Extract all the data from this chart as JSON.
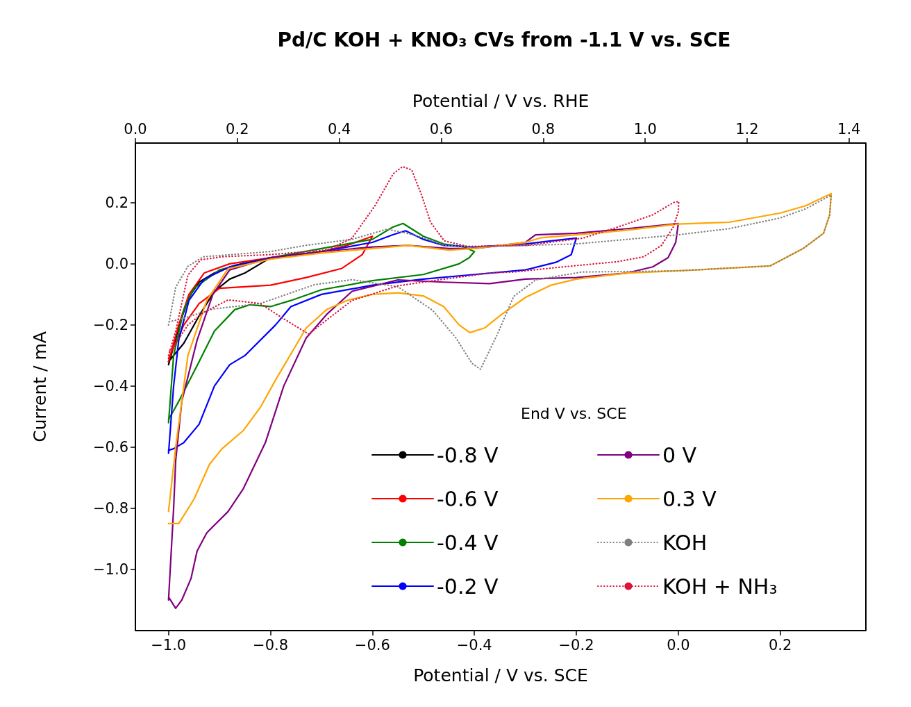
{
  "chart_data": {
    "type": "line",
    "title": "Pd/C KOH + KNO₃ CVs from -1.1 V vs. SCE",
    "xlabel": "Potential / V vs. SCE",
    "x2label": "Potential / V vs. RHE",
    "ylabel": "Current / mA",
    "legend_title": "End V vs. SCE",
    "legend": "bottom right",
    "marker": "none",
    "xlim": [
      -1.065,
      0.368
    ],
    "xticks": [
      {
        "value": -1.0,
        "label": "−1.0"
      },
      {
        "value": -0.8,
        "label": "−0.8"
      },
      {
        "value": -0.6,
        "label": "−0.6"
      },
      {
        "value": -0.4,
        "label": "−0.4"
      },
      {
        "value": -0.2,
        "label": "−0.2"
      },
      {
        "value": 0.0,
        "label": "0.0"
      },
      {
        "value": 0.2,
        "label": "0.2"
      }
    ],
    "x2lim": [
      0.0,
      1.433
    ],
    "x2ticks": [
      {
        "value": 0.0,
        "label": "0.0"
      },
      {
        "value": 0.2,
        "label": "0.2"
      },
      {
        "value": 0.4,
        "label": "0.4"
      },
      {
        "value": 0.6,
        "label": "0.6"
      },
      {
        "value": 0.8,
        "label": "0.8"
      },
      {
        "value": 1.0,
        "label": "1.0"
      },
      {
        "value": 1.2,
        "label": "1.2"
      },
      {
        "value": 1.4,
        "label": "1.4"
      }
    ],
    "ylim": [
      -1.2,
      0.395
    ],
    "yticks": [
      {
        "value": -1.0,
        "label": "−1.0"
      },
      {
        "value": -0.8,
        "label": "−0.8"
      },
      {
        "value": -0.6,
        "label": "−0.6"
      },
      {
        "value": -0.4,
        "label": "−0.4"
      },
      {
        "value": -0.2,
        "label": "−0.2"
      },
      {
        "value": 0.0,
        "label": "0.0"
      },
      {
        "value": 0.2,
        "label": "0.2"
      }
    ],
    "series": [
      {
        "name": "-0.8 V",
        "color": "#000000",
        "line_style": "solid",
        "x": [
          -1.0,
          -0.99,
          -0.975,
          -0.96,
          -0.94,
          -0.91,
          -0.87,
          -0.83,
          -0.8,
          -0.82,
          -0.85,
          -0.88,
          -0.91,
          -0.94,
          -0.97,
          -1.0
        ],
        "values": [
          -0.33,
          -0.27,
          -0.18,
          -0.11,
          -0.06,
          -0.03,
          -0.005,
          0.01,
          0.02,
          0.0,
          -0.03,
          -0.05,
          -0.09,
          -0.17,
          -0.26,
          -0.32
        ]
      },
      {
        "name": "-0.6 V",
        "color": "#ff0000",
        "line_style": "solid",
        "x": [
          -1.0,
          -0.98,
          -0.96,
          -0.93,
          -0.88,
          -0.8,
          -0.7,
          -0.65,
          -0.6,
          -0.62,
          -0.66,
          -0.73,
          -0.8,
          -0.85,
          -0.9,
          -0.94,
          -0.97,
          -1.0
        ],
        "values": [
          -0.32,
          -0.2,
          -0.1,
          -0.03,
          0.0,
          0.02,
          0.04,
          0.06,
          0.09,
          0.03,
          -0.015,
          -0.045,
          -0.07,
          -0.075,
          -0.08,
          -0.13,
          -0.2,
          -0.31
        ]
      },
      {
        "name": "-0.4 V",
        "color": "#008000",
        "line_style": "solid",
        "x": [
          -1.0,
          -0.99,
          -0.97,
          -0.95,
          -0.9,
          -0.8,
          -0.7,
          -0.6,
          -0.56,
          -0.54,
          -0.5,
          -0.46,
          -0.42,
          -0.4,
          -0.41,
          -0.43,
          -0.5,
          -0.6,
          -0.7,
          -0.76,
          -0.8,
          -0.84,
          -0.87,
          -0.91,
          -0.94,
          -0.98,
          -1.0
        ],
        "values": [
          -0.52,
          -0.3,
          -0.15,
          -0.08,
          -0.02,
          0.02,
          0.05,
          0.08,
          0.12,
          0.132,
          0.09,
          0.065,
          0.055,
          0.04,
          0.02,
          0.0,
          -0.035,
          -0.055,
          -0.085,
          -0.12,
          -0.14,
          -0.134,
          -0.15,
          -0.22,
          -0.32,
          -0.45,
          -0.51
        ]
      },
      {
        "name": "-0.2 V",
        "color": "#0000ff",
        "line_style": "solid",
        "x": [
          -1.0,
          -0.99,
          -0.98,
          -0.96,
          -0.93,
          -0.88,
          -0.8,
          -0.7,
          -0.6,
          -0.56,
          -0.535,
          -0.5,
          -0.46,
          -0.4,
          -0.3,
          -0.25,
          -0.2,
          -0.21,
          -0.24,
          -0.3,
          -0.4,
          -0.5,
          -0.6,
          -0.7,
          -0.76,
          -0.79,
          -0.85,
          -0.88,
          -0.91,
          -0.94,
          -0.97,
          -0.99,
          -1.0
        ],
        "values": [
          -0.62,
          -0.4,
          -0.25,
          -0.12,
          -0.05,
          -0.01,
          0.02,
          0.04,
          0.07,
          0.095,
          0.108,
          0.08,
          0.06,
          0.055,
          0.065,
          0.075,
          0.084,
          0.03,
          0.005,
          -0.02,
          -0.035,
          -0.05,
          -0.07,
          -0.1,
          -0.14,
          -0.2,
          -0.3,
          -0.33,
          -0.4,
          -0.525,
          -0.585,
          -0.605,
          -0.61
        ]
      },
      {
        "name": "0 V",
        "color": "#800080",
        "line_style": "solid",
        "x": [
          -1.0,
          -0.99,
          -0.986,
          -0.974,
          -0.944,
          -0.913,
          -0.88,
          -0.8,
          -0.7,
          -0.6,
          -0.53,
          -0.45,
          -0.4,
          -0.3,
          -0.28,
          -0.2,
          -0.1,
          0.0,
          -0.005,
          -0.02,
          -0.05,
          -0.1,
          -0.2,
          -0.3,
          -0.37,
          -0.46,
          -0.55,
          -0.64,
          -0.69,
          -0.73,
          -0.774,
          -0.81,
          -0.853,
          -0.883,
          -0.925,
          -0.944,
          -0.956,
          -0.974,
          -0.986,
          -1.0
        ],
        "values": [
          -1.1,
          -0.8,
          -0.645,
          -0.45,
          -0.25,
          -0.1,
          -0.02,
          0.02,
          0.04,
          0.055,
          0.06,
          0.05,
          0.05,
          0.07,
          0.095,
          0.1,
          0.115,
          0.132,
          0.07,
          0.02,
          -0.01,
          -0.03,
          -0.045,
          -0.05,
          -0.065,
          -0.06,
          -0.053,
          -0.09,
          -0.166,
          -0.243,
          -0.4,
          -0.585,
          -0.735,
          -0.81,
          -0.88,
          -0.94,
          -1.03,
          -1.1,
          -1.127,
          -1.09
        ]
      },
      {
        "name": "0.3 V",
        "color": "#ffa500",
        "line_style": "solid",
        "x": [
          -1.0,
          -0.986,
          -0.962,
          -0.925,
          -0.883,
          -0.8,
          -0.7,
          -0.6,
          -0.53,
          -0.45,
          -0.4,
          -0.3,
          -0.27,
          -0.2,
          -0.1,
          0.0,
          0.1,
          0.2,
          0.25,
          0.3,
          0.297,
          0.285,
          0.245,
          0.18,
          0.0,
          -0.1,
          -0.2,
          -0.25,
          -0.3,
          -0.35,
          -0.38,
          -0.409,
          -0.43,
          -0.46,
          -0.5,
          -0.55,
          -0.6,
          -0.65,
          -0.69,
          -0.73,
          -0.79,
          -0.82,
          -0.853,
          -0.895,
          -0.92,
          -0.95,
          -0.98,
          -1.0
        ],
        "values": [
          -0.81,
          -0.6,
          -0.3,
          -0.12,
          -0.016,
          0.015,
          0.035,
          0.05,
          0.06,
          0.045,
          0.05,
          0.07,
          0.085,
          0.095,
          0.11,
          0.13,
          0.136,
          0.166,
          0.19,
          0.23,
          0.16,
          0.1,
          0.05,
          -0.007,
          -0.023,
          -0.03,
          -0.05,
          -0.07,
          -0.11,
          -0.17,
          -0.21,
          -0.225,
          -0.2,
          -0.14,
          -0.105,
          -0.095,
          -0.1,
          -0.12,
          -0.15,
          -0.21,
          -0.38,
          -0.47,
          -0.545,
          -0.605,
          -0.657,
          -0.77,
          -0.85,
          -0.85
        ]
      },
      {
        "name": "KOH",
        "color": "#808080",
        "line_style": "dotted",
        "x": [
          -1.0,
          -0.986,
          -0.962,
          -0.932,
          -0.8,
          -0.732,
          -0.64,
          -0.572,
          -0.537,
          -0.5,
          -0.459,
          -0.4,
          -0.3,
          -0.2,
          -0.1,
          0.0,
          0.1,
          0.2,
          0.25,
          0.3,
          0.297,
          0.285,
          0.245,
          0.18,
          0.0,
          -0.19,
          -0.28,
          -0.323,
          -0.354,
          -0.388,
          -0.405,
          -0.436,
          -0.482,
          -0.55,
          -0.64,
          -0.713,
          -0.82,
          -0.913,
          -0.974,
          -1.0
        ],
        "values": [
          -0.2,
          -0.077,
          -0.008,
          0.023,
          0.04,
          0.06,
          0.08,
          0.113,
          0.102,
          0.085,
          0.06,
          0.055,
          0.06,
          0.065,
          0.08,
          0.095,
          0.115,
          0.15,
          0.18,
          0.225,
          0.16,
          0.1,
          0.05,
          -0.007,
          -0.023,
          -0.027,
          -0.053,
          -0.107,
          -0.227,
          -0.345,
          -0.325,
          -0.243,
          -0.152,
          -0.075,
          -0.052,
          -0.068,
          -0.13,
          -0.148,
          -0.18,
          -0.19
        ]
      },
      {
        "name": "KOH + NH₃",
        "color": "#dc143c",
        "line_style": "dotted",
        "x": [
          -1.0,
          -0.986,
          -0.962,
          -0.937,
          -0.895,
          -0.8,
          -0.687,
          -0.64,
          -0.595,
          -0.559,
          -0.541,
          -0.523,
          -0.504,
          -0.486,
          -0.459,
          -0.414,
          -0.3,
          -0.187,
          -0.119,
          -0.05,
          -0.01,
          0.001,
          0.0,
          -0.01,
          -0.033,
          -0.068,
          -0.119,
          -0.232,
          -0.323,
          -0.368,
          -0.459,
          -0.55,
          -0.64,
          -0.687,
          -0.725,
          -0.774,
          -0.82,
          -0.883,
          -0.932,
          -0.962,
          -0.986,
          -1.0
        ],
        "values": [
          -0.3,
          -0.22,
          -0.037,
          0.013,
          0.023,
          0.03,
          0.046,
          0.084,
          0.19,
          0.295,
          0.318,
          0.307,
          0.227,
          0.136,
          0.075,
          0.057,
          0.06,
          0.084,
          0.12,
          0.16,
          0.2,
          0.204,
          0.17,
          0.12,
          0.06,
          0.023,
          0.007,
          -0.011,
          -0.027,
          -0.03,
          -0.05,
          -0.072,
          -0.12,
          -0.18,
          -0.23,
          -0.18,
          -0.13,
          -0.118,
          -0.16,
          -0.2,
          -0.26,
          -0.29
        ]
      }
    ]
  }
}
